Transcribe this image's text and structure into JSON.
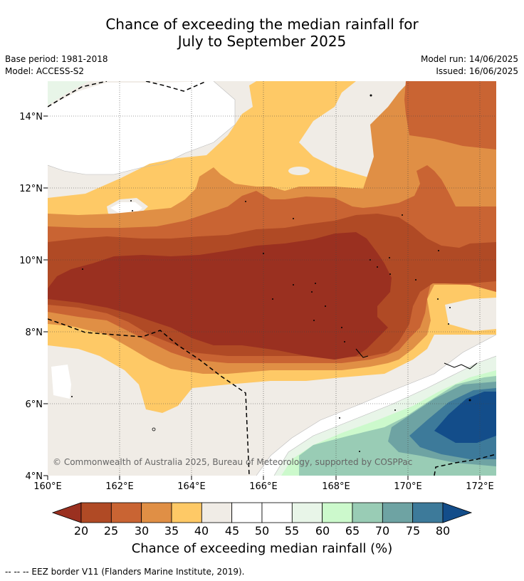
{
  "header": {
    "title_line1": "Chance of exceeding the median rainfall for",
    "title_line2": "July to September 2025",
    "base_period": "Base period: 1981-2018",
    "model": "Model: ACCESS-S2",
    "model_run": "Model run: 14/06/2025",
    "issued": "Issued: 16/06/2025"
  },
  "map": {
    "lon_labels": [
      "160°E",
      "162°E",
      "164°E",
      "166°E",
      "168°E",
      "170°E",
      "172°E"
    ],
    "lat_labels": [
      "14°N",
      "12°N",
      "10°N",
      "8°N",
      "6°N",
      "4°N"
    ],
    "copyright": "© Commonwealth of Australia 2025, Bureau of Meteorology, supported by COSPPac",
    "colors": {
      "20": "#9a3020",
      "25": "#b04a25",
      "30": "#c96433",
      "35": "#e08f45",
      "40": "#fec966",
      "45": "#f0ece6",
      "55": "#ffffff",
      "60": "#e8f5e8",
      "65": "#ccf9cc",
      "70": "#99ccb5",
      "75": "#6ea3a3",
      "80": "#3d7a9a",
      "gt80": "#134d8a"
    }
  },
  "colorbar": {
    "ticks": [
      "20",
      "25",
      "30",
      "35",
      "40",
      "45",
      "50",
      "55",
      "60",
      "65",
      "70",
      "75",
      "80"
    ],
    "bin_colors": [
      "#b04a25",
      "#c96433",
      "#e08f45",
      "#fec966",
      "#f0ece6",
      "#ffffff",
      "#ffffff",
      "#e8f5e8",
      "#ccf9cc",
      "#99ccb5",
      "#6ea3a3",
      "#3d7a9a"
    ],
    "low_color": "#9a3020",
    "high_color": "#134d8a",
    "label": "Chance of exceeding median rainfall (%)"
  },
  "footer": {
    "eez_note": "--  --  -- EEZ border V11 (Flanders Marine Institute, 2019)."
  }
}
